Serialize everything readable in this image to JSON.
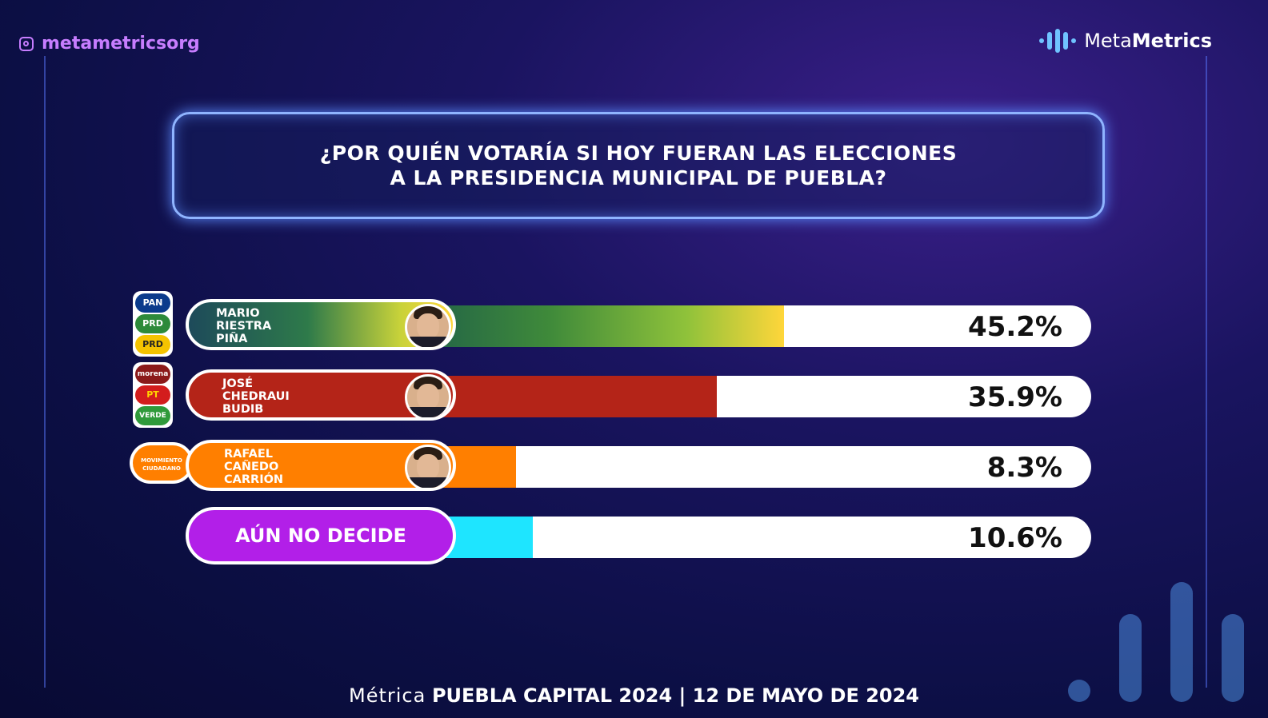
{
  "header": {
    "handle": "metametricsorg",
    "brand_light": "Meta",
    "brand_bold": "Metrics"
  },
  "title": {
    "line1": "¿POR QUIÉN VOTARÍA SI HOY FUERAN LAS ELECCIONES",
    "line2": "A LA PRESIDENCIA MUNICIPAL DE PUEBLA?"
  },
  "colors": {
    "green_gradient_start": "#1b5a4a",
    "green_gradient_end": "#ffd63a",
    "red": "#b42418",
    "orange": "#ff7f00",
    "purple": "#b21fe8",
    "cyan": "#1ee5ff"
  },
  "chart_data": {
    "type": "bar",
    "orientation": "horizontal",
    "categories": [
      "MARIO RIESTRA PIÑA",
      "JOSÉ CHEDRAUI BUDIB",
      "RAFAEL CAÑEDO CARRIÓN",
      "AÚN NO DECIDE"
    ],
    "values": [
      45.2,
      35.9,
      8.3,
      10.6
    ],
    "labels": [
      "45.2%",
      "35.9%",
      "8.3%",
      "10.6%"
    ],
    "xlim": [
      0,
      100
    ]
  },
  "rows": [
    {
      "name1": "MARIO",
      "name2": "RIESTRA",
      "name3": "PIÑA",
      "pct": "45.2%",
      "logos": [
        "PAN",
        "PRD",
        "PRD"
      ]
    },
    {
      "name1": "JOSÉ",
      "name2": "CHEDRAUI",
      "name3": "BUDIB",
      "pct": "35.9%",
      "logos": [
        "morena",
        "PT",
        "VERDE"
      ]
    },
    {
      "name1": "RAFAEL",
      "name2": "CAÑEDO",
      "name3": "CARRIÓN",
      "pct": "8.3%",
      "logos": [
        "MOVIMIENTO CIUDADANO"
      ]
    },
    {
      "label": "AÚN NO DECIDE",
      "pct": "10.6%"
    }
  ],
  "footer": {
    "light": "Métrica",
    "bold": "PUEBLA CAPITAL 2024 | 12 DE MAYO DE 2024"
  }
}
